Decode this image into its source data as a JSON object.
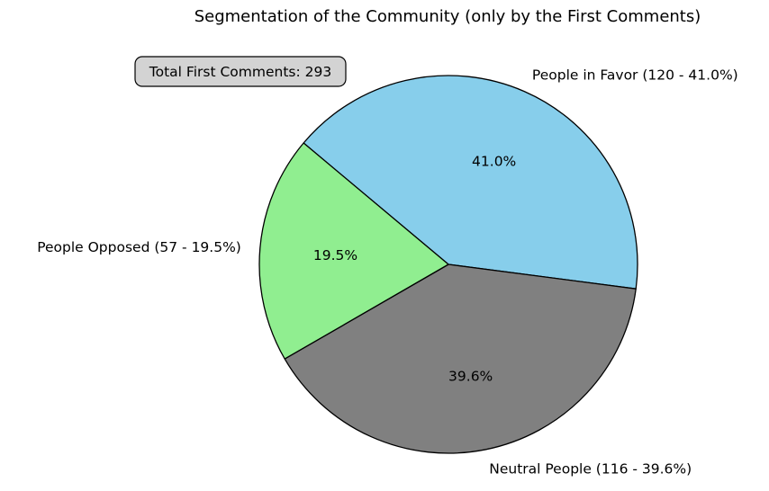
{
  "chart_data": {
    "type": "pie",
    "title": "Segmentation of the Community (only by the First Comments)",
    "annotation": "Total First Comments: 293",
    "slices": [
      {
        "label": "People in Favor (120 - 41.0%)",
        "value": 120,
        "pct_label": "41.0%",
        "color": "#87ceeb"
      },
      {
        "label": "Neutral People (116 - 39.6%)",
        "value": 116,
        "pct_label": "39.6%",
        "color": "#808080"
      },
      {
        "label": "People Opposed (57 - 19.5%)",
        "value": 57,
        "pct_label": "19.5%",
        "color": "#90ee90"
      }
    ],
    "start_angle_deg": 140,
    "direction": "clockwise",
    "edge_color": "#000000"
  }
}
